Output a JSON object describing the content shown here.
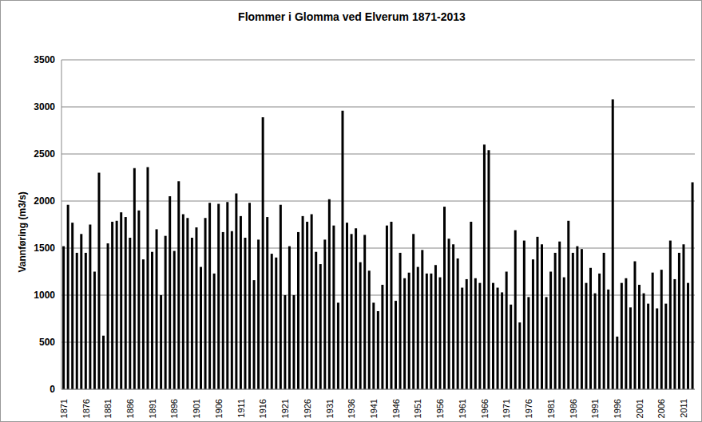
{
  "chart_data": {
    "type": "bar",
    "title": "Flommer i Glomma ved Elverum 1871-2013",
    "y_label": "Vannføring (m3/s)",
    "categories": [
      "1871",
      null,
      null,
      null,
      null,
      "1876",
      null,
      null,
      null,
      null,
      "1881",
      null,
      null,
      null,
      null,
      "1886",
      null,
      null,
      null,
      null,
      "1891",
      null,
      null,
      null,
      null,
      "1896",
      null,
      null,
      null,
      null,
      "1901",
      null,
      null,
      null,
      null,
      "1906",
      null,
      null,
      null,
      null,
      "1911",
      null,
      null,
      null,
      null,
      "1916",
      null,
      null,
      null,
      null,
      "1921",
      null,
      null,
      null,
      null,
      "1926",
      null,
      null,
      null,
      null,
      "1931",
      null,
      null,
      null,
      null,
      "1936",
      null,
      null,
      null,
      null,
      "1941",
      null,
      null,
      null,
      null,
      "1946",
      null,
      null,
      null,
      null,
      "1951",
      null,
      null,
      null,
      null,
      "1956",
      null,
      null,
      null,
      null,
      "1961",
      null,
      null,
      null,
      null,
      "1966",
      null,
      null,
      null,
      null,
      "1971",
      null,
      null,
      null,
      null,
      "1976",
      null,
      null,
      null,
      null,
      "1981",
      null,
      null,
      null,
      null,
      "1986",
      null,
      null,
      null,
      null,
      "1991",
      null,
      null,
      null,
      null,
      "1996",
      null,
      null,
      null,
      null,
      "2001",
      null,
      null,
      null,
      null,
      "2006",
      null,
      null,
      null,
      null,
      "2011",
      null,
      null
    ],
    "values": [
      1520,
      1960,
      1770,
      1450,
      1650,
      1450,
      1750,
      1250,
      2300,
      570,
      1550,
      1780,
      1790,
      1880,
      1830,
      1610,
      2350,
      1900,
      1380,
      2360,
      1460,
      1700,
      1000,
      1630,
      2050,
      1470,
      2210,
      1860,
      1820,
      1610,
      1720,
      1300,
      1820,
      1980,
      1230,
      1970,
      1670,
      1990,
      1680,
      2080,
      1840,
      1610,
      1980,
      1160,
      1590,
      2890,
      1830,
      1440,
      1400,
      1960,
      1000,
      1520,
      1000,
      1670,
      1840,
      1780,
      1860,
      1460,
      1330,
      1590,
      2020,
      1740,
      920,
      2960,
      1770,
      1650,
      1710,
      1350,
      1640,
      1260,
      920,
      830,
      1110,
      1740,
      1780,
      940,
      1450,
      1180,
      1240,
      1650,
      1300,
      1480,
      1230,
      1230,
      1320,
      1190,
      1940,
      1600,
      1540,
      1390,
      1080,
      1170,
      1780,
      1180,
      1130,
      2600,
      2540,
      1130,
      1080,
      1030,
      1250,
      900,
      1690,
      710,
      1580,
      980,
      1380,
      1620,
      1540,
      980,
      1250,
      1450,
      1570,
      1190,
      1790,
      1450,
      1520,
      1490,
      1130,
      1290,
      1020,
      1230,
      1450,
      1060,
      3080,
      560,
      1130,
      1180,
      870,
      1360,
      1110,
      1020,
      910,
      1240,
      860,
      1270,
      910,
      1580,
      1170,
      1450,
      1540,
      1130,
      2200
    ],
    "color": "#000000",
    "ylim": [
      0,
      3500
    ],
    "yticks": [
      0,
      500,
      1000,
      1500,
      2000,
      2500,
      3000,
      3500
    ],
    "grid": true
  }
}
